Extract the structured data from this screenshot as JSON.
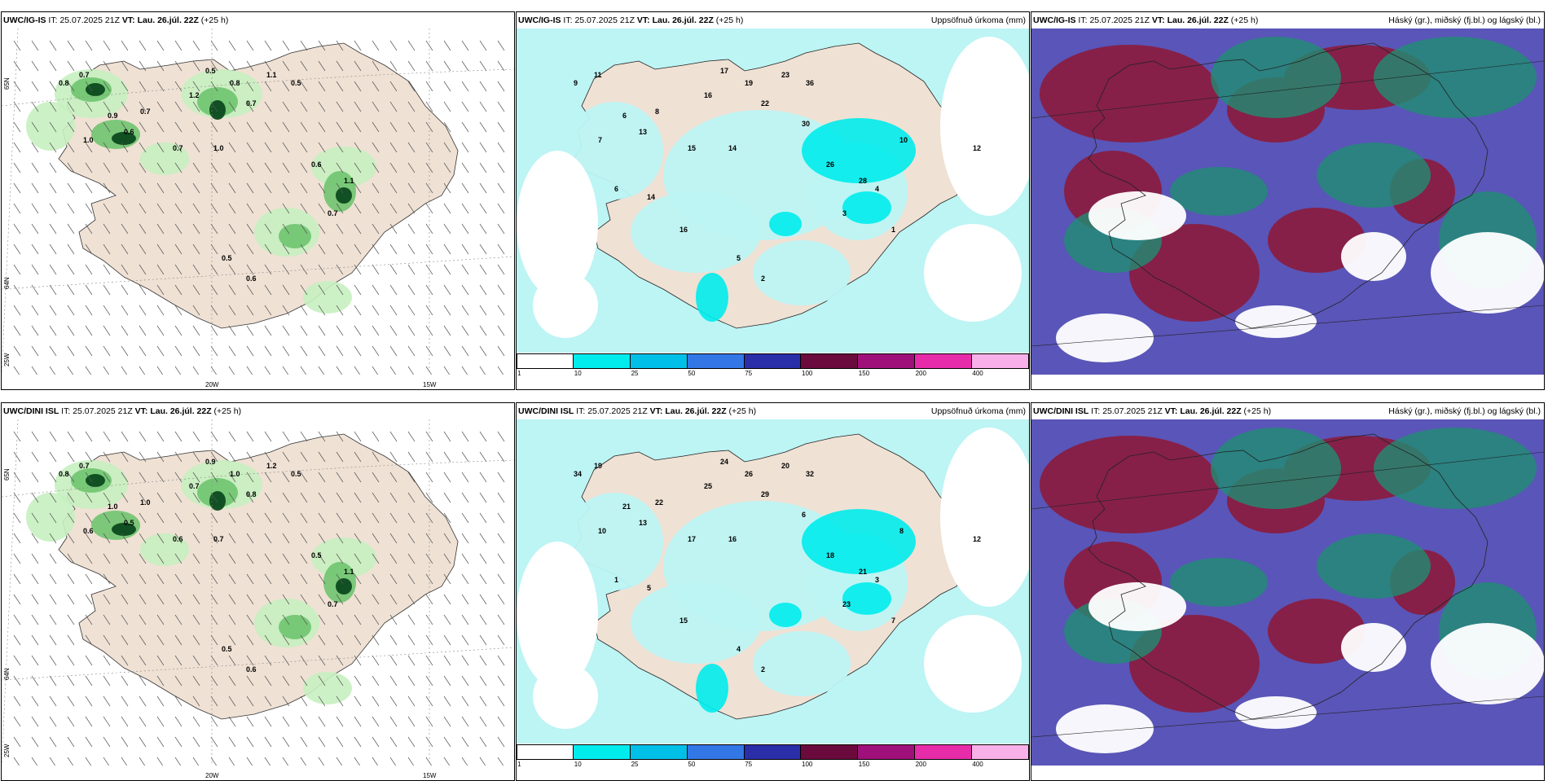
{
  "colors": {
    "land": "#efe1d4",
    "sea": "#ffffff",
    "precip_sea": "#bdf4f4",
    "green_light": "#c7f0c0",
    "green_mid": "#6fc46f",
    "green_dark": "#0c4a1d",
    "cloud_purple": "#5a55b8",
    "cloud_maroon": "#8b1b3c",
    "cloud_teal": "#1f8d73",
    "cbar": [
      "#ffffff",
      "#00ecec",
      "#00c0e8",
      "#3377e6",
      "#2a2ea8",
      "#6b0a3d",
      "#a0107a",
      "#e62ca9",
      "#f8b0e9"
    ]
  },
  "colorbar_labels": [
    "1",
    "10",
    "25",
    "50",
    "75",
    "100",
    "150",
    "200",
    "400"
  ],
  "lon_labels": [
    "20W",
    "15W"
  ],
  "lat_labels": [
    "65N",
    "64N",
    "25W"
  ],
  "panels": [
    {
      "model": "UWC/IG-IS",
      "it_label": "IT:",
      "it_value": "25.07.2025 21Z",
      "vt_label": "VT:",
      "vt_value": "Lau. 26.júl. 22Z",
      "lead": "(+25 h)",
      "right_title": "",
      "kind": "wind",
      "values": [
        "0.8",
        "0.7",
        "0.9",
        "0.6",
        "1.0",
        "0.7",
        "1.2",
        "0.5",
        "0.8",
        "0.7",
        "1.1",
        "0.5",
        "0.7",
        "1.0",
        "0.6",
        "1.1",
        "0.7",
        "0.5",
        "0.6"
      ]
    },
    {
      "model": "UWC/IG-IS",
      "it_label": "IT:",
      "it_value": "25.07.2025 21Z",
      "vt_label": "VT:",
      "vt_value": "Lau. 26.júl. 22Z",
      "lead": "(+25 h)",
      "right_title": "Uppsöfnuð úrkoma (mm)",
      "kind": "precip",
      "values": [
        "9",
        "11",
        "6",
        "13",
        "7",
        "8",
        "16",
        "17",
        "19",
        "22",
        "23",
        "36",
        "15",
        "14",
        "26",
        "28",
        "3",
        "5",
        "2",
        "4",
        "12",
        "10",
        "30",
        "16",
        "14",
        "6",
        "1"
      ]
    },
    {
      "model": "UWC/IG-IS",
      "it_label": "IT:",
      "it_value": "25.07.2025 21Z",
      "vt_label": "VT:",
      "vt_value": "Lau. 26.júl. 22Z",
      "lead": "(+25 h)",
      "right_title": "Háský (gr.), miðský (fj.bl.) og lágský (bl.)",
      "kind": "cloud",
      "values": []
    },
    {
      "model": "UWC/DINI ISL",
      "it_label": "IT:",
      "it_value": "25.07.2025 21Z",
      "vt_label": "VT:",
      "vt_value": "Lau. 26.júl. 22Z",
      "lead": "(+25 h)",
      "right_title": "",
      "kind": "wind",
      "values": [
        "0.8",
        "0.7",
        "1.0",
        "0.5",
        "0.6",
        "1.0",
        "0.7",
        "0.9",
        "1.0",
        "0.8",
        "1.2",
        "0.5",
        "0.6",
        "0.7",
        "0.5",
        "1.1",
        "0.7",
        "0.5",
        "0.6"
      ]
    },
    {
      "model": "UWC/DINI ISL",
      "it_label": "IT:",
      "it_value": "25.07.2025 21Z",
      "vt_label": "VT:",
      "vt_value": "Lau. 26.júl. 22Z",
      "lead": "(+25 h)",
      "right_title": "Uppsöfnuð úrkoma (mm)",
      "kind": "precip",
      "values": [
        "34",
        "19",
        "21",
        "13",
        "10",
        "22",
        "25",
        "24",
        "26",
        "29",
        "20",
        "32",
        "17",
        "16",
        "18",
        "21",
        "23",
        "4",
        "2",
        "3",
        "12",
        "8",
        "6",
        "15",
        "5",
        "1",
        "7"
      ]
    },
    {
      "model": "UWC/DINI ISL",
      "it_label": "IT:",
      "it_value": "25.07.2025 21Z",
      "vt_label": "VT:",
      "vt_value": "Lau. 26.júl. 22Z",
      "lead": "(+25 h)",
      "right_title": "Háský (gr.), miðský (fj.bl.) og lágský (bl.)",
      "kind": "cloud",
      "values": []
    }
  ]
}
